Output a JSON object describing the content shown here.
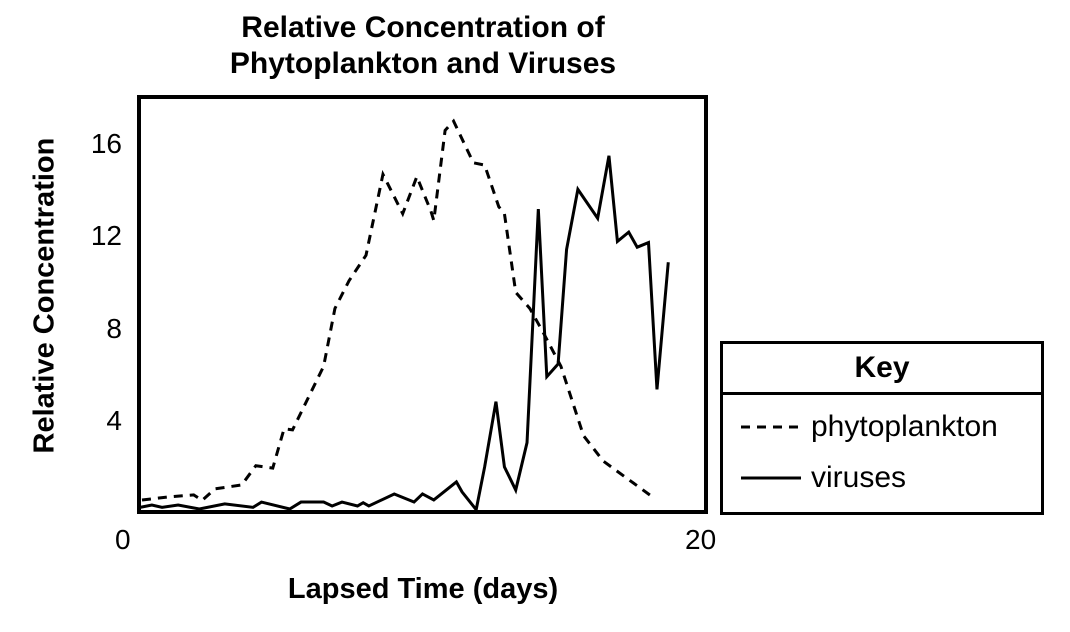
{
  "chart_data": {
    "type": "line",
    "title": "Relative Concentration of Phytoplankton and Viruses",
    "title_lines": [
      "Relative Concentration of",
      "Phytoplankton and Viruses"
    ],
    "xlabel": "Lapsed Time (days)",
    "ylabel": "Relative Concentration",
    "xlim": [
      0,
      20
    ],
    "ylim": [
      0,
      17.9
    ],
    "xticks": [
      "0",
      "20"
    ],
    "yticks": [
      "4",
      "8",
      "12",
      "16"
    ],
    "grid": false,
    "legend": {
      "title": "Key",
      "placement": "right",
      "entries": [
        "phytoplankton",
        "viruses"
      ]
    },
    "series": [
      {
        "name": "phytoplankton",
        "style": "dashed",
        "x": [
          0.07,
          1.0,
          1.9,
          2.2,
          2.65,
          3.6,
          4.1,
          4.7,
          5.1,
          5.4,
          6.5,
          6.9,
          7.4,
          8.0,
          8.6,
          9.3,
          9.8,
          10.3,
          10.4,
          10.8,
          11.1,
          11.8,
          12.2,
          12.7,
          12.9,
          13.3,
          13.8,
          14.3,
          14.9,
          15.7,
          16.4,
          18.2
        ],
        "y": [
          0.52,
          0.65,
          0.74,
          0.5,
          1.0,
          1.17,
          2.0,
          1.9,
          3.6,
          3.55,
          6.3,
          8.8,
          10.0,
          11.1,
          14.6,
          12.9,
          14.5,
          13.0,
          12.6,
          16.5,
          16.9,
          15.1,
          15.0,
          13.2,
          12.9,
          9.5,
          8.8,
          7.7,
          6.3,
          3.3,
          2.2,
          0.6
        ]
      },
      {
        "name": "viruses",
        "style": "solid",
        "x": [
          0,
          0.42,
          0.78,
          1.35,
          2.1,
          3.0,
          4.0,
          4.3,
          5.3,
          5.7,
          6.5,
          6.8,
          7.15,
          7.7,
          7.9,
          8.1,
          9.0,
          9.7,
          10.0,
          10.4,
          11.2,
          11.4,
          11.9,
          12.2,
          12.6,
          12.9,
          13.3,
          13.7,
          14.1,
          14.4,
          14.8,
          15.1,
          15.5,
          16.2,
          16.6,
          16.9,
          17.3,
          17.6,
          18.0,
          18.3,
          18.7
        ],
        "y": [
          0.2,
          0.3,
          0.2,
          0.3,
          0.13,
          0.35,
          0.2,
          0.43,
          0.13,
          0.43,
          0.43,
          0.26,
          0.43,
          0.26,
          0.4,
          0.26,
          0.78,
          0.43,
          0.78,
          0.52,
          1.3,
          0.87,
          0.1,
          1.95,
          4.77,
          1.95,
          0.95,
          3.0,
          13.1,
          5.85,
          6.4,
          11.35,
          13.95,
          12.7,
          15.4,
          11.7,
          12.1,
          11.45,
          11.65,
          5.3,
          10.8
        ]
      }
    ]
  }
}
